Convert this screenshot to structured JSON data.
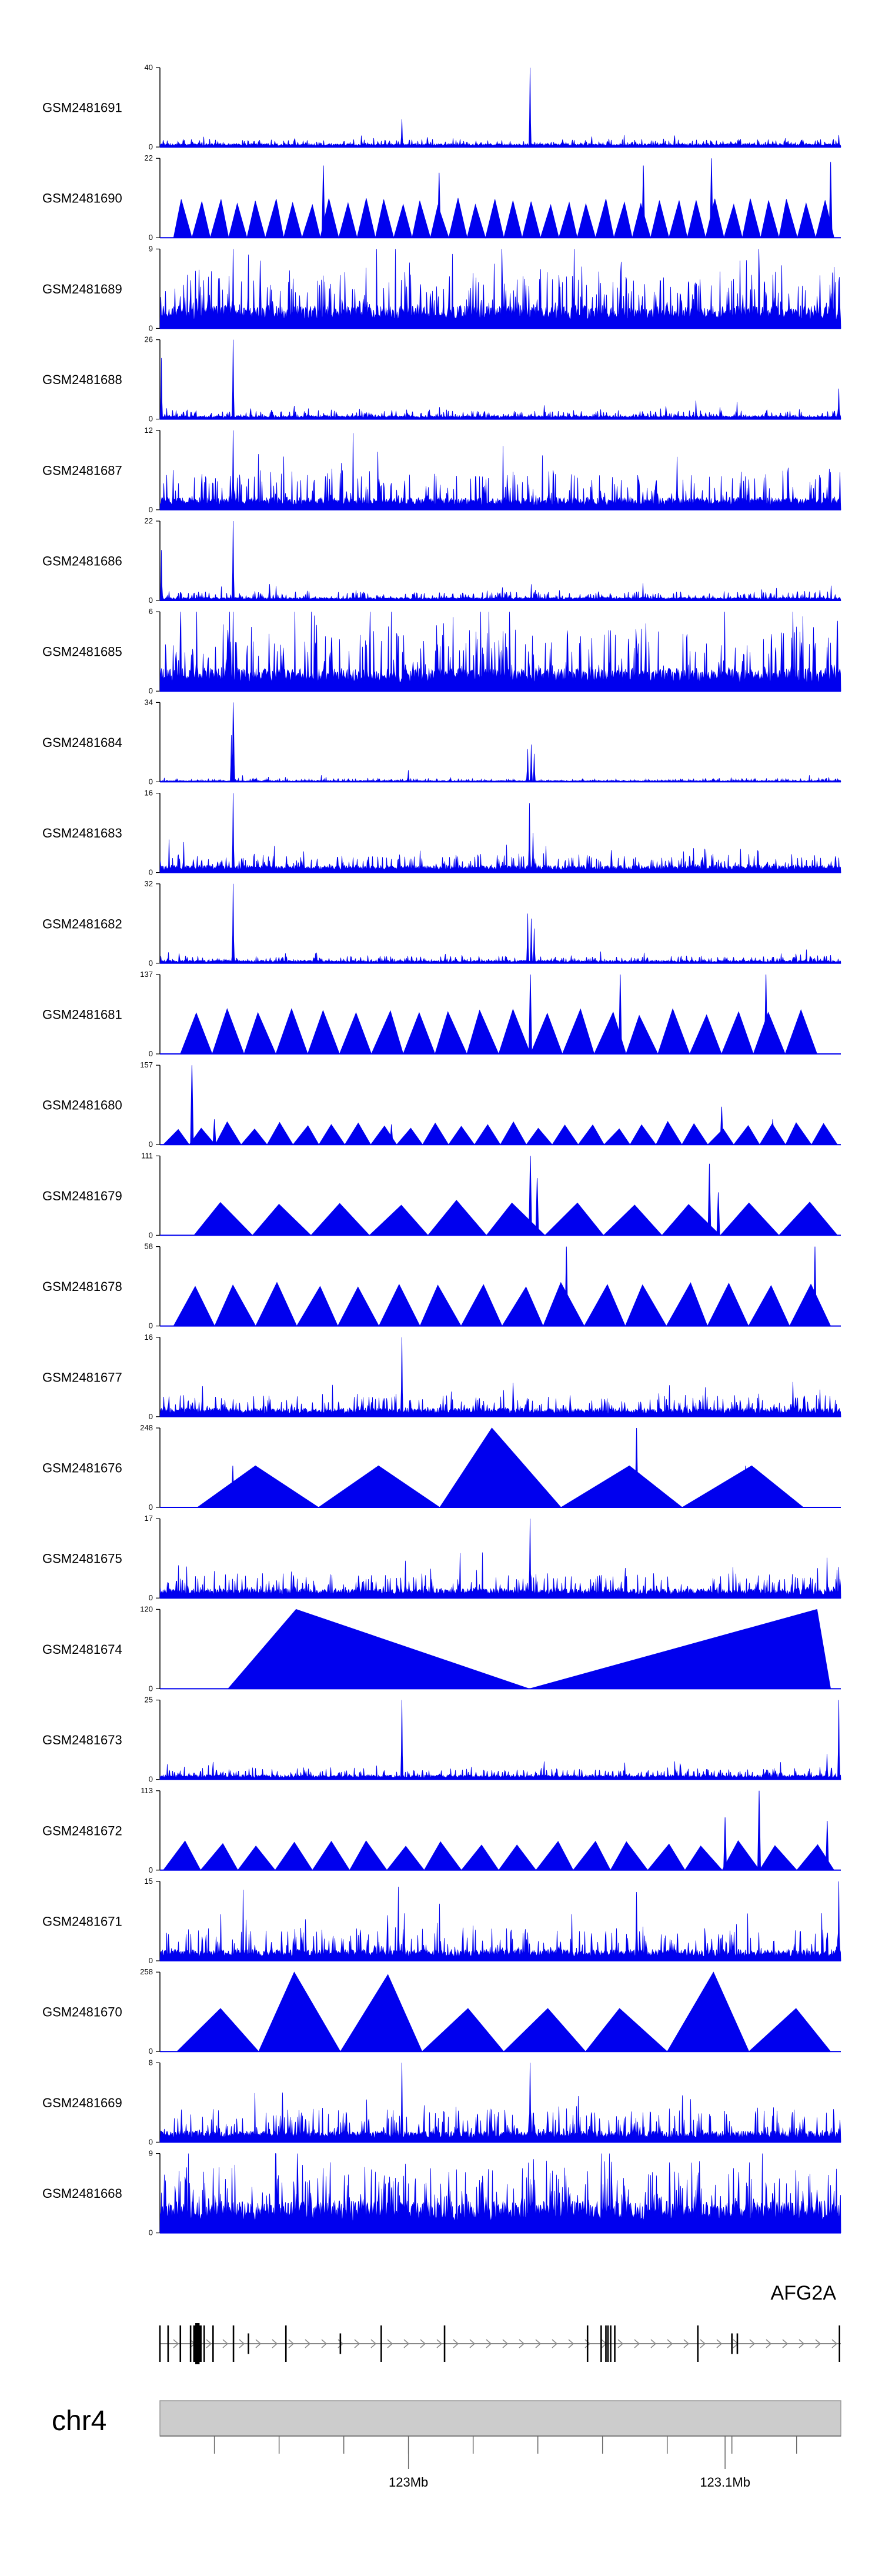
{
  "colors": {
    "signal": "#0000ee",
    "axis": "#000000",
    "ideogram": "#cccccc",
    "gene": "#000000",
    "strand_arrow": "#888888"
  },
  "chart_data": {
    "type": "area",
    "chromosome": "chr4",
    "gene": {
      "name": "AFG2A",
      "strand": "+"
    },
    "genome_axis": {
      "ticks": [
        {
          "label": "123Mb"
        },
        {
          "label": "123.1Mb"
        }
      ]
    },
    "tracks": [
      {
        "name": "GSM2481691",
        "ymax": "40",
        "ymin": "0",
        "style": "dense",
        "baseline": 1.2,
        "noise": 2.5,
        "peaks": [
          [
            0.355,
            14
          ],
          [
            0.544,
            40
          ],
          [
            0.997,
            6
          ]
        ]
      },
      {
        "name": "GSM2481690",
        "ymax": "22",
        "ymin": "0",
        "style": "tri",
        "count": 36,
        "start": 0.02,
        "end": 0.99,
        "base": 10,
        "var": 1,
        "spikes": [
          [
            0.24,
            20
          ],
          [
            0.41,
            18
          ],
          [
            0.71,
            20
          ],
          [
            0.81,
            22
          ],
          [
            0.985,
            21
          ]
        ]
      },
      {
        "name": "GSM2481689",
        "ymax": "9",
        "ymin": "0",
        "style": "dense",
        "baseline": 1.8,
        "noise": 4.5,
        "peaks": [
          [
            0.107,
            9
          ],
          [
            0.62,
            7
          ]
        ]
      },
      {
        "name": "GSM2481688",
        "ymax": "26",
        "ymin": "0",
        "style": "dense",
        "baseline": 0.8,
        "noise": 2.0,
        "peaks": [
          [
            0.002,
            20
          ],
          [
            0.107,
            26
          ],
          [
            0.997,
            10
          ]
        ]
      },
      {
        "name": "GSM2481687",
        "ymax": "12",
        "ymin": "0",
        "style": "dense",
        "baseline": 1.3,
        "noise": 4.5,
        "peaks": [
          [
            0.107,
            12
          ],
          [
            0.76,
            8
          ]
        ]
      },
      {
        "name": "GSM2481686",
        "ymax": "22",
        "ymin": "0",
        "style": "dense",
        "baseline": 0.6,
        "noise": 1.8,
        "peaks": [
          [
            0.002,
            14
          ],
          [
            0.107,
            22
          ]
        ]
      },
      {
        "name": "GSM2481685",
        "ymax": "6",
        "ymin": "0",
        "style": "dense",
        "baseline": 1.2,
        "noise": 3.5,
        "peaks": [
          [
            0.107,
            6
          ],
          [
            0.054,
            6
          ],
          [
            0.23,
            5
          ]
        ]
      },
      {
        "name": "GSM2481684",
        "ymax": "34",
        "ymin": "0",
        "style": "dense",
        "baseline": 0.4,
        "noise": 1.0,
        "peaks": [
          [
            0.107,
            34
          ],
          [
            0.108,
            24
          ],
          [
            0.105,
            20
          ],
          [
            0.365,
            5
          ],
          [
            0.54,
            14
          ],
          [
            0.545,
            16
          ],
          [
            0.55,
            12
          ]
        ]
      },
      {
        "name": "GSM2481683",
        "ymax": "16",
        "ymin": "0",
        "style": "dense",
        "baseline": 1.0,
        "noise": 2.5,
        "peaks": [
          [
            0.107,
            16
          ],
          [
            0.543,
            14
          ],
          [
            0.548,
            8
          ]
        ]
      },
      {
        "name": "GSM2481682",
        "ymax": "32",
        "ymin": "0",
        "style": "dense",
        "baseline": 0.8,
        "noise": 2.0,
        "peaks": [
          [
            0.107,
            32
          ],
          [
            0.54,
            20
          ],
          [
            0.545,
            18
          ],
          [
            0.55,
            14
          ]
        ]
      },
      {
        "name": "GSM2481681",
        "ymax": "137",
        "ymin": "0",
        "style": "tri",
        "count": 20,
        "start": 0.03,
        "end": 0.965,
        "base": 72,
        "var": 6,
        "spikes": [
          [
            0.544,
            137
          ],
          [
            0.676,
            137
          ],
          [
            0.89,
            137
          ]
        ]
      },
      {
        "name": "GSM2481680",
        "ymax": "157",
        "ymin": "0",
        "style": "tri",
        "count": 26,
        "start": 0.005,
        "end": 0.995,
        "base": 38,
        "var": 8,
        "spikes": [
          [
            0.047,
            157
          ],
          [
            0.08,
            50
          ],
          [
            0.825,
            75
          ],
          [
            0.9,
            50
          ],
          [
            0.34,
            40
          ]
        ]
      },
      {
        "name": "GSM2481679",
        "ymax": "111",
        "ymin": "0",
        "style": "tri",
        "count": 11,
        "start": 0.05,
        "end": 0.995,
        "base": 45,
        "var": 4,
        "spikes": [
          [
            0.544,
            111
          ],
          [
            0.554,
            80
          ],
          [
            0.807,
            100
          ],
          [
            0.82,
            60
          ]
        ]
      },
      {
        "name": "GSM2481678",
        "ymax": "58",
        "ymin": "0",
        "style": "tri",
        "count": 16,
        "start": 0.02,
        "end": 0.985,
        "base": 30,
        "var": 2,
        "spikes": [
          [
            0.597,
            58
          ],
          [
            0.962,
            58
          ]
        ]
      },
      {
        "name": "GSM2481677",
        "ymax": "16",
        "ymin": "0",
        "style": "dense",
        "baseline": 1.2,
        "noise": 3.0,
        "peaks": [
          [
            0.355,
            16
          ],
          [
            0.93,
            7
          ]
        ]
      },
      {
        "name": "GSM2481676",
        "ymax": "248",
        "ymin": "0",
        "style": "tri",
        "count": 5,
        "start": 0.055,
        "end": 0.945,
        "base": 130,
        "var": 4,
        "spikes": [
          [
            0.107,
            130
          ],
          [
            0.7,
            248
          ],
          [
            0.86,
            130
          ]
        ],
        "heights": [
          130,
          130,
          248,
          130,
          130
        ]
      },
      {
        "name": "GSM2481675",
        "ymax": "17",
        "ymin": "0",
        "style": "dense",
        "baseline": 1.4,
        "noise": 3.5,
        "peaks": [
          [
            0.544,
            17
          ],
          [
            0.36,
            8
          ]
        ]
      },
      {
        "name": "GSM2481674",
        "ymax": "120",
        "ymin": "0",
        "style": "tri",
        "count": 2,
        "start": 0.1,
        "end": 0.985,
        "base": 120,
        "var": 0,
        "spikes": [],
        "apexes": [
          0.2,
          0.965
        ]
      },
      {
        "name": "GSM2481673",
        "ymax": "25",
        "ymin": "0",
        "style": "dense",
        "baseline": 1.0,
        "noise": 2.5,
        "peaks": [
          [
            0.355,
            25
          ],
          [
            0.997,
            25
          ],
          [
            0.98,
            8
          ]
        ]
      },
      {
        "name": "GSM2481672",
        "ymax": "113",
        "ymin": "0",
        "style": "tri",
        "count": 18,
        "start": 0.005,
        "end": 0.99,
        "base": 38,
        "var": 4,
        "spikes": [
          [
            0.88,
            113
          ],
          [
            0.83,
            75
          ],
          [
            0.98,
            70
          ]
        ]
      },
      {
        "name": "GSM2481671",
        "ymax": "15",
        "ymin": "0",
        "style": "dense",
        "baseline": 1.5,
        "noise": 4.5,
        "peaks": [
          [
            0.997,
            15
          ],
          [
            0.35,
            14
          ],
          [
            0.7,
            13
          ]
        ]
      },
      {
        "name": "GSM2481670",
        "ymax": "258",
        "ymin": "0",
        "style": "tri",
        "count": 8,
        "start": 0.025,
        "end": 0.985,
        "base": 140,
        "var": 10,
        "heights": [
          140,
          258,
          250,
          140,
          140,
          140,
          258,
          140
        ],
        "spikes": []
      },
      {
        "name": "GSM2481669",
        "ymax": "8",
        "ymin": "0",
        "style": "dense",
        "baseline": 0.8,
        "noise": 2.5,
        "peaks": [
          [
            0.355,
            8
          ],
          [
            0.544,
            8
          ],
          [
            0.18,
            5
          ]
        ]
      },
      {
        "name": "GSM2481668",
        "ymax": "9",
        "ymin": "0",
        "style": "dense",
        "baseline": 2.5,
        "noise": 5.0,
        "peaks": [
          [
            0.66,
            9
          ],
          [
            0.25,
            8
          ]
        ]
      }
    ]
  }
}
